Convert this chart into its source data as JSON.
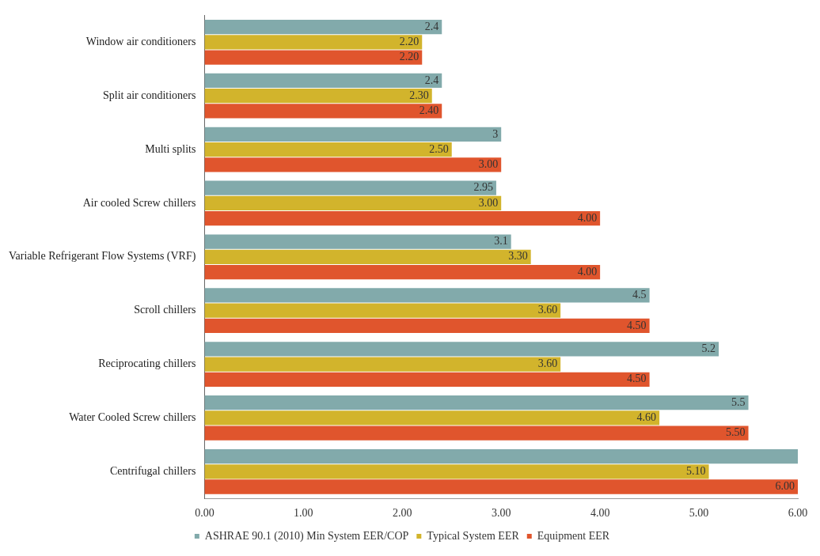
{
  "chart_data": {
    "type": "bar",
    "orientation": "horizontal",
    "categories": [
      "Window air conditioners",
      "Split air conditioners",
      "Multi splits",
      "Air cooled Screw chillers",
      "Variable Refrigerant Flow Systems (VRF)",
      "Scroll chillers",
      "Reciprocating chillers",
      "Water Cooled Screw chillers",
      "Centrifugal chillers"
    ],
    "series": [
      {
        "name": "ASHRAE 90.1 (2010) Min System EER/COP",
        "color": "#82aaab",
        "values": [
          2.4,
          2.4,
          3,
          2.95,
          3.1,
          4.5,
          5.2,
          5.5,
          6
        ],
        "value_labels": [
          "2.4",
          "2.4",
          "3",
          "2.95",
          "3.1",
          "4.5",
          "5.2",
          "5.5",
          null
        ]
      },
      {
        "name": "Typical System EER",
        "color": "#d2b42c",
        "values": [
          2.2,
          2.3,
          2.5,
          3,
          3.3,
          3.6,
          3.6,
          4.6,
          5.1
        ],
        "value_labels": [
          "2.20",
          "2.30",
          "2.50",
          "3.00",
          "3.30",
          "3.60",
          "3.60",
          "4.60",
          "5.10"
        ]
      },
      {
        "name": "Equipment EER",
        "color": "#e0552d",
        "values": [
          2.2,
          2.4,
          3,
          4,
          4,
          4.5,
          4.5,
          5.5,
          6
        ],
        "value_labels": [
          "2.20",
          "2.40",
          "3.00",
          "4.00",
          "4.00",
          "4.50",
          "4.50",
          "5.50",
          "6.00"
        ]
      }
    ],
    "xlim": [
      0,
      6
    ],
    "xticks": [
      {
        "value": 0,
        "label": "0.00"
      },
      {
        "value": 1,
        "label": "1.00"
      },
      {
        "value": 2,
        "label": "2.00"
      },
      {
        "value": 3,
        "label": "3.00"
      },
      {
        "value": 4,
        "label": "4.00"
      },
      {
        "value": 5,
        "label": "5.00"
      },
      {
        "value": 6,
        "label": "6.00"
      }
    ],
    "grid": false,
    "legend": "bottom"
  }
}
